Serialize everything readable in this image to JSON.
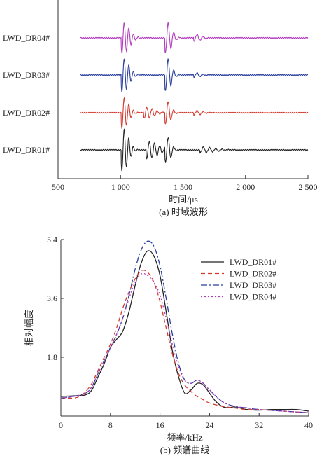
{
  "chart_data": [
    {
      "id": "time-domain",
      "type": "line",
      "caption": "(a) 时域波形",
      "xlabel": "时间/μs",
      "xlim": [
        500,
        2500
      ],
      "xticks": [
        500,
        1000,
        1500,
        2000,
        2500
      ],
      "xtick_labels": [
        "500",
        "1 000",
        "1 500",
        "2 000",
        "2 500"
      ],
      "ylabel": "",
      "grid": false,
      "trace_amplitude": 1.0,
      "series": [
        {
          "name": "LWD_DR04#",
          "color": "#b23cbf",
          "arrivals": [
            {
              "t0": 1020,
              "f": 27,
              "tau": 70,
              "a": 0.55
            },
            {
              "t0": 1370,
              "f": 22,
              "tau": 55,
              "a": 0.55
            },
            {
              "t0": 1600,
              "f": 20,
              "tau": 60,
              "a": 0.12
            }
          ]
        },
        {
          "name": "LWD_DR03#",
          "color": "#2b3f9e",
          "arrivals": [
            {
              "t0": 1020,
              "f": 27,
              "tau": 65,
              "a": 0.6
            },
            {
              "t0": 1370,
              "f": 22,
              "tau": 50,
              "a": 0.6
            },
            {
              "t0": 1600,
              "f": 20,
              "tau": 55,
              "a": 0.08
            }
          ]
        },
        {
          "name": "LWD_DR02#",
          "color": "#d33a2f",
          "arrivals": [
            {
              "t0": 1020,
              "f": 27,
              "tau": 60,
              "a": 0.55
            },
            {
              "t0": 1200,
              "f": 24,
              "tau": 90,
              "a": 0.2
            },
            {
              "t0": 1370,
              "f": 22,
              "tau": 45,
              "a": 0.42
            },
            {
              "t0": 1600,
              "f": 20,
              "tau": 70,
              "a": 0.08
            }
          ]
        },
        {
          "name": "LWD_DR01#",
          "color": "#222222",
          "arrivals": [
            {
              "t0": 1020,
              "f": 27,
              "tau": 60,
              "a": 0.75
            },
            {
              "t0": 1220,
              "f": 24,
              "tau": 110,
              "a": 0.3
            },
            {
              "t0": 1370,
              "f": 22,
              "tau": 45,
              "a": 0.5
            },
            {
              "t0": 1650,
              "f": 20,
              "tau": 140,
              "a": 0.1
            }
          ]
        }
      ]
    },
    {
      "id": "spectrum",
      "type": "line",
      "caption": "(b) 频谱曲线",
      "xlabel": "频率/kHz",
      "ylabel": "相对幅度",
      "xlim": [
        0,
        40
      ],
      "ylim": [
        0,
        5.4
      ],
      "xticks": [
        0,
        8,
        16,
        24,
        32,
        40
      ],
      "yticks": [
        1.8,
        3.6,
        5.4
      ],
      "grid": false,
      "legend_position": "top-right",
      "series": [
        {
          "name": "LWD_DR01#",
          "color": "#222222",
          "dash": "",
          "x": [
            0,
            2,
            4,
            5,
            6,
            7,
            8,
            9,
            10,
            11,
            12,
            13,
            14,
            15,
            16,
            17,
            18,
            19,
            20,
            21,
            22,
            23,
            24,
            25,
            26,
            27,
            28,
            30,
            32,
            34,
            36,
            38,
            40
          ],
          "y": [
            0.6,
            0.62,
            0.65,
            0.8,
            1.2,
            1.6,
            2.1,
            2.35,
            2.6,
            3.2,
            4.0,
            4.7,
            5.05,
            4.9,
            4.3,
            3.2,
            2.0,
            1.2,
            0.7,
            0.8,
            1.0,
            0.95,
            0.7,
            0.45,
            0.3,
            0.25,
            0.28,
            0.2,
            0.18,
            0.2,
            0.2,
            0.2,
            0.15
          ]
        },
        {
          "name": "LWD_DR02#",
          "color": "#d33a2f",
          "dash": "6,4",
          "x": [
            0,
            2,
            3,
            4,
            5,
            6,
            7,
            8,
            9,
            10,
            11,
            12,
            13,
            14,
            15,
            16,
            17,
            18,
            19,
            20,
            21,
            22,
            23,
            24,
            26,
            28,
            30,
            32,
            36,
            40
          ],
          "y": [
            0.55,
            0.55,
            0.6,
            0.75,
            1.0,
            1.4,
            1.8,
            2.2,
            2.7,
            3.3,
            3.8,
            4.2,
            4.45,
            4.4,
            4.1,
            3.5,
            2.7,
            1.9,
            1.3,
            0.95,
            0.75,
            0.6,
            0.5,
            0.4,
            0.3,
            0.25,
            0.2,
            0.2,
            0.15,
            0.1
          ]
        },
        {
          "name": "LWD_DR03#",
          "color": "#2b3f9e",
          "dash": "9,3,2,3",
          "x": [
            0,
            2,
            4,
            5,
            6,
            7,
            8,
            9,
            10,
            11,
            12,
            13,
            14,
            15,
            16,
            17,
            18,
            19,
            20,
            21,
            22,
            23,
            24,
            26,
            28,
            30,
            32,
            36,
            40
          ],
          "y": [
            0.55,
            0.6,
            0.7,
            0.9,
            1.3,
            1.7,
            2.1,
            2.5,
            3.0,
            3.7,
            4.5,
            5.1,
            5.35,
            5.2,
            4.6,
            3.6,
            2.5,
            1.6,
            1.1,
            1.0,
            1.1,
            1.0,
            0.8,
            0.45,
            0.3,
            0.25,
            0.2,
            0.15,
            0.1
          ]
        },
        {
          "name": "LWD_DR04#",
          "color": "#b23cbf",
          "dash": "2,3",
          "x": [
            0,
            2,
            4,
            5,
            6,
            7,
            8,
            9,
            10,
            11,
            12,
            13,
            14,
            15,
            16,
            17,
            18,
            19,
            20,
            21,
            22,
            23,
            24,
            26,
            28,
            30,
            32,
            36,
            40
          ],
          "y": [
            0.55,
            0.6,
            0.7,
            0.9,
            1.3,
            1.7,
            2.1,
            2.5,
            3.0,
            3.6,
            4.1,
            4.35,
            4.3,
            4.1,
            3.7,
            3.0,
            2.2,
            1.5,
            1.1,
            1.0,
            1.1,
            1.0,
            0.8,
            0.45,
            0.3,
            0.25,
            0.2,
            0.15,
            0.1
          ]
        }
      ]
    }
  ]
}
